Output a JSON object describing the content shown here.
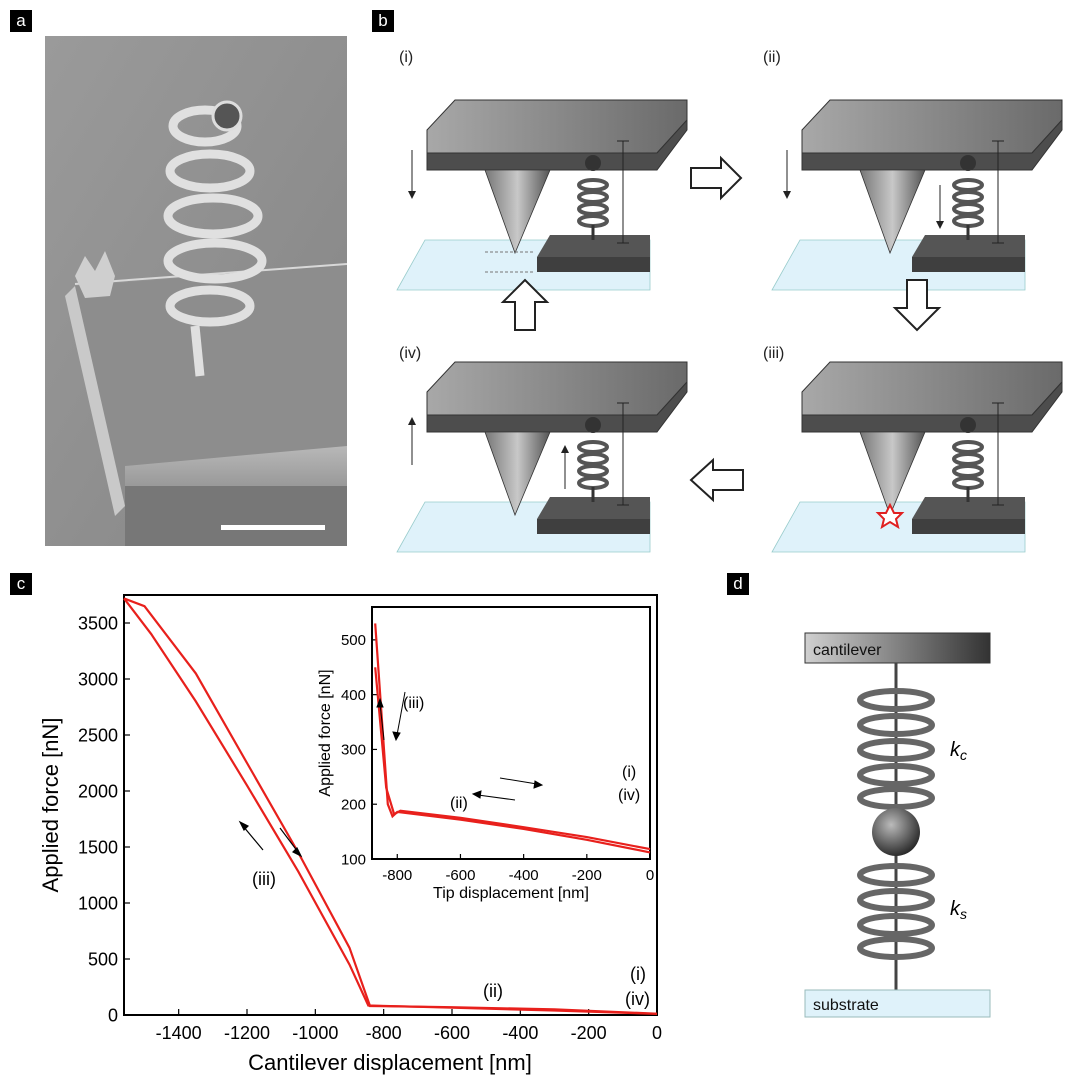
{
  "panels": {
    "a": {
      "label": "a"
    },
    "b": {
      "label": "b",
      "steps": [
        "(i)",
        "(ii)",
        "(iii)",
        "(iv)"
      ]
    },
    "c": {
      "label": "c"
    },
    "d": {
      "label": "d",
      "top_label": "cantilever",
      "bottom_label": "substrate",
      "kc": "k",
      "kc_sub": "c",
      "ks": "k",
      "ks_sub": "s"
    }
  },
  "chart_data": [
    {
      "type": "line",
      "xlabel": "Cantilever displacement [nm]",
      "ylabel": "Applied force [nN]",
      "xlim": [
        -1560,
        0
      ],
      "ylim": [
        0,
        3750
      ],
      "xticks": [
        -1400,
        -1200,
        -1000,
        -800,
        -600,
        -400,
        -200,
        0
      ],
      "yticks": [
        0,
        500,
        1000,
        1500,
        2000,
        2500,
        3000,
        3500
      ],
      "series": [
        {
          "x": [
            -1560,
            -1480,
            -1350,
            -1200,
            -1050,
            -900,
            -845,
            -600,
            -300,
            0
          ],
          "y": [
            3720,
            3400,
            2800,
            2050,
            1280,
            450,
            85,
            65,
            40,
            10
          ]
        },
        {
          "x": [
            -1560,
            -1500,
            -1350,
            -1200,
            -1050,
            -900,
            -840,
            -600,
            -300,
            0
          ],
          "y": [
            3720,
            3650,
            3050,
            2250,
            1450,
            600,
            80,
            70,
            50,
            12
          ]
        }
      ],
      "annotations": [
        "(iii)",
        "(ii)",
        "(i)",
        "(iv)"
      ]
    },
    {
      "type": "line",
      "xlabel": "Tip displacement [nm]",
      "ylabel": "Applied force [nN]",
      "xlim": [
        -880,
        0
      ],
      "ylim": [
        100,
        560
      ],
      "xticks": [
        -800,
        -600,
        -400,
        -200,
        0
      ],
      "yticks": [
        100,
        200,
        300,
        400,
        500
      ],
      "series": [
        {
          "x": [
            -870,
            -830,
            -815,
            -800,
            -600,
            -400,
            -200,
            0
          ],
          "y": [
            530,
            200,
            178,
            186,
            172,
            155,
            135,
            112
          ]
        },
        {
          "x": [
            -870,
            -835,
            -810,
            -790,
            -600,
            -400,
            -200,
            0
          ],
          "y": [
            450,
            230,
            182,
            188,
            175,
            158,
            140,
            118
          ]
        }
      ],
      "annotations": [
        "(iii)",
        "(ii)",
        "(i)",
        "(iv)"
      ]
    }
  ]
}
